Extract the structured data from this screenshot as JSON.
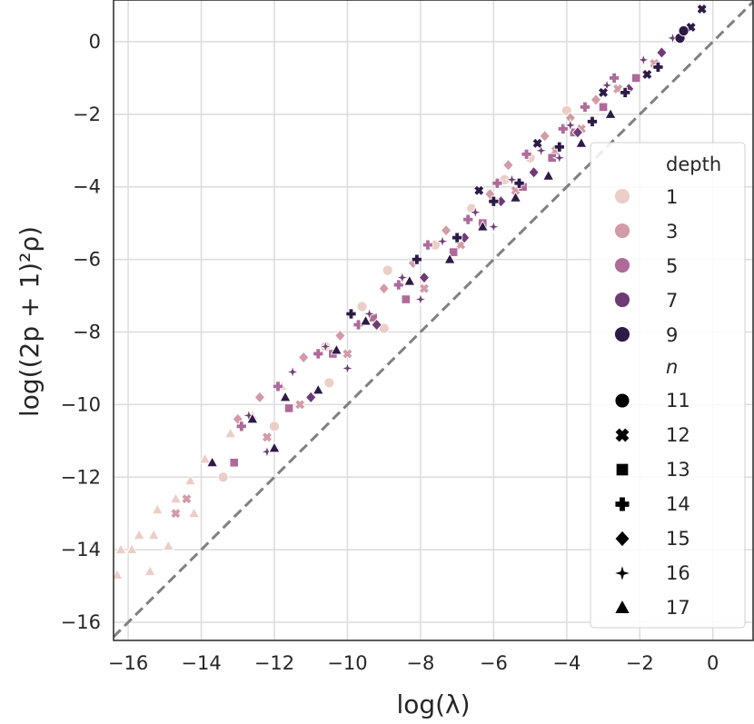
{
  "chart_data": {
    "type": "scatter",
    "title": "",
    "xlabel": "log(λ)",
    "ylabel": "log((2p + 1)²ρ)",
    "xlim": [
      -16.4,
      1.1
    ],
    "ylim": [
      -16.5,
      1.15
    ],
    "xticks": [
      -16,
      -14,
      -12,
      -10,
      -8,
      -6,
      -4,
      -2,
      0
    ],
    "yticks": [
      -16,
      -14,
      -12,
      -10,
      -8,
      -6,
      -4,
      -2,
      0
    ],
    "xtick_labels": [
      "−16",
      "−14",
      "−12",
      "−10",
      "−8",
      "−6",
      "−4",
      "−2",
      "0"
    ],
    "ytick_labels": [
      "−16",
      "−14",
      "−12",
      "−10",
      "−8",
      "−6",
      "−4",
      "−2",
      "0"
    ],
    "grid": true,
    "reference_line": {
      "slope": 1,
      "intercept": 0,
      "style": "dashed",
      "color": "#808080"
    },
    "legend": {
      "placement": "center-right",
      "hue_title": "depth",
      "hue_entries": [
        {
          "label": "1",
          "color": "#ebcec7"
        },
        {
          "label": "3",
          "color": "#d39aa8"
        },
        {
          "label": "5",
          "color": "#ae6a98"
        },
        {
          "label": "7",
          "color": "#6f3b75"
        },
        {
          "label": "9",
          "color": "#2d1b47"
        }
      ],
      "style_title": "n",
      "style_entries": [
        {
          "label": "11",
          "marker": "circle"
        },
        {
          "label": "12",
          "marker": "x"
        },
        {
          "label": "13",
          "marker": "square"
        },
        {
          "label": "14",
          "marker": "plus"
        },
        {
          "label": "15",
          "marker": "diamond"
        },
        {
          "label": "16",
          "marker": "star"
        },
        {
          "label": "17",
          "marker": "triangle"
        }
      ]
    },
    "series": [
      {
        "depth": "1",
        "n": "17",
        "marker": "triangle",
        "points": [
          [
            -16.3,
            -14.7
          ],
          [
            -16.2,
            -14.0
          ],
          [
            -15.9,
            -14.0
          ],
          [
            -15.7,
            -13.6
          ],
          [
            -15.3,
            -13.6
          ],
          [
            -15.2,
            -12.9
          ],
          [
            -14.7,
            -12.6
          ],
          [
            -14.3,
            -12.1
          ],
          [
            -13.9,
            -11.5
          ],
          [
            -13.2,
            -10.8
          ],
          [
            -12.6,
            -10.3
          ],
          [
            -11.8,
            -9.5
          ],
          [
            -15.4,
            -14.6
          ],
          [
            -14.9,
            -13.9
          ],
          [
            -14.2,
            -13.0
          ]
        ]
      },
      {
        "depth": "1",
        "n": "11",
        "marker": "circle",
        "points": [
          [
            -10.6,
            -8.4
          ],
          [
            -9.6,
            -7.3
          ],
          [
            -8.9,
            -6.3
          ],
          [
            -7.6,
            -5.6
          ],
          [
            -6.6,
            -4.6
          ],
          [
            -5.7,
            -3.8
          ],
          [
            -5.0,
            -3.2
          ],
          [
            -4.0,
            -1.9
          ],
          [
            -13.4,
            -12.0
          ],
          [
            -12.0,
            -10.6
          ],
          [
            -10.5,
            -9.4
          ],
          [
            -9.0,
            -7.9
          ]
        ]
      },
      {
        "depth": "3",
        "n": "15",
        "marker": "diamond",
        "points": [
          [
            -13.0,
            -10.4
          ],
          [
            -12.4,
            -9.8
          ],
          [
            -11.2,
            -8.7
          ],
          [
            -10.2,
            -8.1
          ],
          [
            -9.0,
            -6.8
          ],
          [
            -8.2,
            -6.1
          ],
          [
            -7.3,
            -5.2
          ],
          [
            -6.1,
            -4.2
          ],
          [
            -5.6,
            -3.4
          ],
          [
            -4.6,
            -2.6
          ],
          [
            -3.9,
            -2.1
          ],
          [
            -3.2,
            -1.6
          ]
        ]
      },
      {
        "depth": "3",
        "n": "12",
        "marker": "x",
        "points": [
          [
            -14.7,
            -13.0
          ],
          [
            -14.4,
            -12.6
          ],
          [
            -12.2,
            -10.9
          ],
          [
            -11.3,
            -10.0
          ],
          [
            -10.0,
            -8.6
          ],
          [
            -7.9,
            -6.8
          ],
          [
            -6.9,
            -5.6
          ],
          [
            -5.4,
            -4.1
          ],
          [
            -4.3,
            -3.0
          ],
          [
            -3.6,
            -2.4
          ],
          [
            -2.6,
            -1.3
          ],
          [
            -1.6,
            -0.6
          ]
        ]
      },
      {
        "depth": "5",
        "n": "14",
        "marker": "plus",
        "points": [
          [
            -12.9,
            -10.6
          ],
          [
            -11.9,
            -9.5
          ],
          [
            -10.8,
            -8.6
          ],
          [
            -9.7,
            -7.8
          ],
          [
            -8.6,
            -6.7
          ],
          [
            -7.8,
            -5.6
          ],
          [
            -6.7,
            -4.9
          ],
          [
            -5.9,
            -3.9
          ],
          [
            -5.1,
            -3.1
          ],
          [
            -4.1,
            -2.4
          ],
          [
            -3.5,
            -1.8
          ],
          [
            -2.7,
            -1.0
          ]
        ]
      },
      {
        "depth": "5",
        "n": "13",
        "marker": "square",
        "points": [
          [
            -13.1,
            -11.6
          ],
          [
            -11.6,
            -10.1
          ],
          [
            -10.4,
            -8.6
          ],
          [
            -9.3,
            -7.6
          ],
          [
            -8.4,
            -7.1
          ],
          [
            -7.1,
            -5.8
          ],
          [
            -6.3,
            -5.0
          ],
          [
            -5.2,
            -4.0
          ],
          [
            -4.4,
            -3.2
          ],
          [
            -3.8,
            -2.5
          ],
          [
            -3.0,
            -1.8
          ],
          [
            -2.1,
            -1.0
          ]
        ]
      },
      {
        "depth": "7",
        "n": "16",
        "marker": "star",
        "points": [
          [
            -12.7,
            -10.3
          ],
          [
            -11.5,
            -9.1
          ],
          [
            -10.6,
            -8.4
          ],
          [
            -9.4,
            -7.5
          ],
          [
            -8.5,
            -6.5
          ],
          [
            -7.4,
            -5.5
          ],
          [
            -6.5,
            -4.7
          ],
          [
            -5.5,
            -3.8
          ],
          [
            -4.7,
            -3.0
          ],
          [
            -3.9,
            -2.3
          ],
          [
            -2.9,
            -1.2
          ],
          [
            -1.9,
            -0.5
          ],
          [
            -1.1,
            0.1
          ],
          [
            -12.2,
            -11.3
          ],
          [
            -10.0,
            -9.0
          ],
          [
            -8.0,
            -7.1
          ],
          [
            -6.0,
            -5.1
          ],
          [
            -4.2,
            -3.2
          ]
        ]
      },
      {
        "depth": "7",
        "n": "15",
        "marker": "diamond",
        "points": [
          [
            -11.0,
            -9.8
          ],
          [
            -9.2,
            -7.8
          ],
          [
            -7.9,
            -6.5
          ],
          [
            -6.8,
            -5.4
          ],
          [
            -5.8,
            -4.4
          ],
          [
            -4.9,
            -3.6
          ],
          [
            -3.7,
            -2.5
          ],
          [
            -2.3,
            -1.3
          ],
          [
            -1.4,
            -0.3
          ]
        ]
      },
      {
        "depth": "9",
        "n": "17",
        "marker": "triangle",
        "points": [
          [
            -13.7,
            -11.6
          ],
          [
            -12.6,
            -10.4
          ],
          [
            -11.7,
            -9.8
          ],
          [
            -10.3,
            -8.5
          ],
          [
            -9.5,
            -7.7
          ],
          [
            -8.3,
            -6.6
          ],
          [
            -7.2,
            -6.0
          ],
          [
            -6.3,
            -5.1
          ],
          [
            -5.4,
            -4.3
          ],
          [
            -4.5,
            -3.7
          ],
          [
            -3.6,
            -2.8
          ],
          [
            -2.8,
            -2.0
          ],
          [
            -12.0,
            -11.2
          ],
          [
            -10.8,
            -9.6
          ]
        ]
      },
      {
        "depth": "9",
        "n": "14",
        "marker": "plus",
        "points": [
          [
            -9.9,
            -7.5
          ],
          [
            -8.1,
            -6.0
          ],
          [
            -7.0,
            -5.4
          ],
          [
            -6.0,
            -4.4
          ],
          [
            -5.3,
            -3.9
          ],
          [
            -4.2,
            -2.9
          ],
          [
            -3.3,
            -2.2
          ],
          [
            -2.4,
            -1.4
          ],
          [
            -1.5,
            -0.7
          ]
        ]
      },
      {
        "depth": "9",
        "n": "12",
        "marker": "x",
        "points": [
          [
            -0.6,
            0.4
          ],
          [
            -0.3,
            0.9
          ],
          [
            -1.8,
            -0.9
          ],
          [
            -3.0,
            -1.4
          ],
          [
            -4.8,
            -2.8
          ],
          [
            -6.4,
            -4.1
          ]
        ]
      },
      {
        "depth": "9",
        "n": "11",
        "marker": "circle",
        "points": [
          [
            -0.9,
            0.1
          ],
          [
            -0.8,
            0.3
          ]
        ]
      }
    ]
  }
}
